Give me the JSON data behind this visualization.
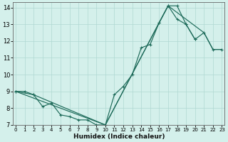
{
  "xlabel": "Humidex (Indice chaleur)",
  "background_color": "#d4f0eb",
  "grid_color": "#afd8d2",
  "line_color": "#1e6b5a",
  "xlim": [
    0,
    23
  ],
  "ylim": [
    7,
    14.3
  ],
  "xticks": [
    0,
    1,
    2,
    3,
    4,
    5,
    6,
    7,
    8,
    9,
    10,
    11,
    12,
    13,
    14,
    15,
    16,
    17,
    18,
    19,
    20,
    21,
    22,
    23
  ],
  "yticks": [
    7,
    8,
    9,
    10,
    11,
    12,
    13,
    14
  ],
  "line_volatile": {
    "x": [
      0,
      1,
      2,
      3,
      4,
      5,
      6,
      7,
      8,
      9,
      10,
      11,
      12,
      13,
      14,
      15,
      16,
      17,
      18,
      19,
      20
    ],
    "y": [
      9.0,
      9.0,
      8.8,
      8.1,
      8.3,
      7.6,
      7.5,
      7.3,
      7.3,
      7.0,
      7.0,
      8.8,
      9.3,
      10.0,
      11.6,
      11.8,
      13.1,
      14.1,
      14.1,
      13.0,
      12.1
    ]
  },
  "line_upper": {
    "x": [
      0,
      2,
      10,
      16,
      17,
      18,
      19,
      20,
      21,
      22,
      23
    ],
    "y": [
      9.0,
      8.8,
      7.0,
      13.1,
      14.1,
      13.3,
      13.0,
      12.1,
      12.5,
      11.5,
      11.5
    ]
  },
  "line_lower": {
    "x": [
      0,
      10,
      17,
      21,
      22,
      23
    ],
    "y": [
      9.0,
      7.0,
      14.1,
      12.5,
      11.5,
      11.5
    ]
  }
}
